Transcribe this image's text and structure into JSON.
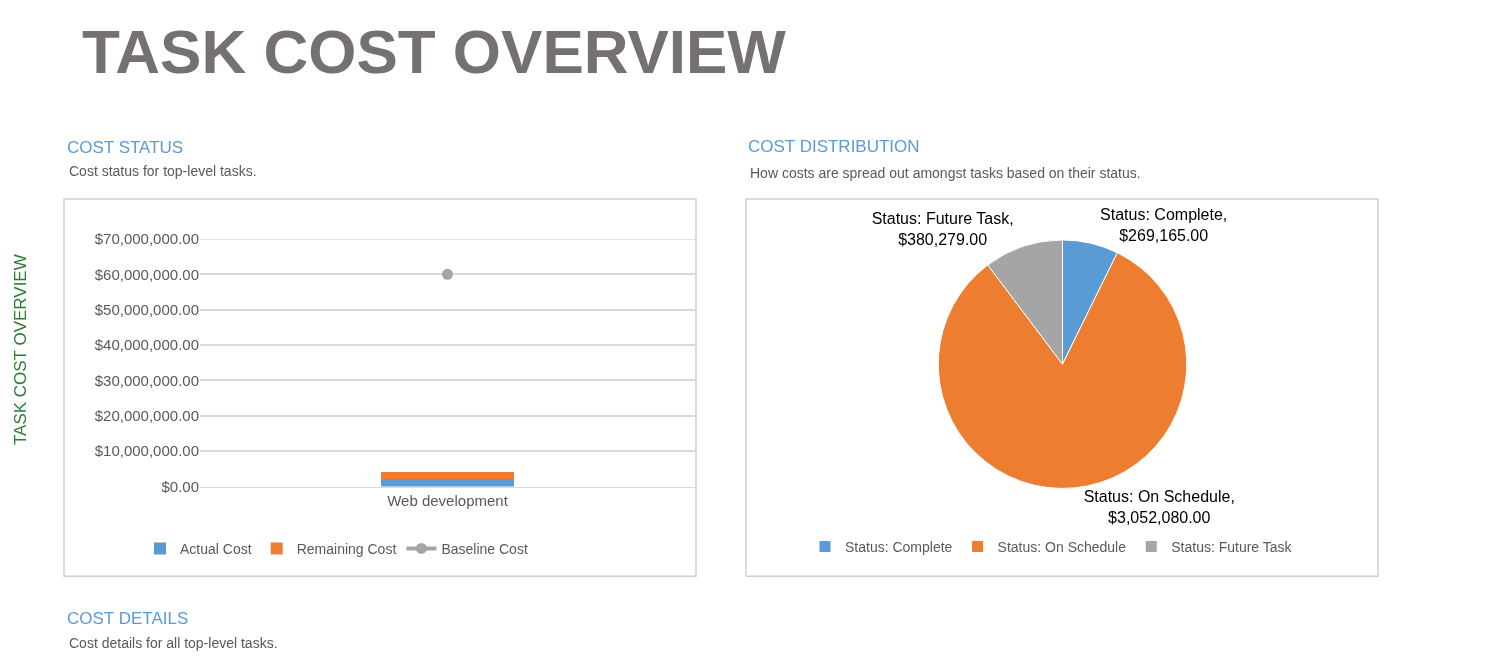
{
  "chart_data": [
    {
      "type": "bar",
      "title": "COST STATUS",
      "subtitle": "Cost status for top-level tasks.",
      "categories": [
        "Web development"
      ],
      "stacked": true,
      "series": [
        {
          "name": "Actual Cost",
          "color": "#5b9bd5",
          "values": [
            2000000
          ]
        },
        {
          "name": "Remaining Cost",
          "color": "#ed7d31",
          "values": [
            2000000
          ]
        },
        {
          "name": "Baseline Cost",
          "color": "#a5a5a5",
          "type": "line",
          "marker": "circle",
          "values": [
            60000000
          ]
        }
      ],
      "ylim": [
        0,
        70000000
      ],
      "yticks": [
        {
          "value": 0,
          "label": "$0.00"
        },
        {
          "value": 10000000,
          "label": "$10,000,000.00"
        },
        {
          "value": 20000000,
          "label": "$20,000,000.00"
        },
        {
          "value": 30000000,
          "label": "$30,000,000.00"
        },
        {
          "value": 40000000,
          "label": "$40,000,000.00"
        },
        {
          "value": 50000000,
          "label": "$50,000,000.00"
        },
        {
          "value": 60000000,
          "label": "$60,000,000.00"
        },
        {
          "value": 70000000,
          "label": "$70,000,000.00"
        }
      ],
      "grid": "y",
      "legend": "bottom"
    },
    {
      "type": "pie",
      "title": "COST DISTRIBUTION",
      "subtitle": "How costs are spread out amongst tasks based on their status.",
      "categories": [
        "Status: Complete",
        "Status: On Schedule",
        "Status: Future Task"
      ],
      "values": [
        269165,
        3052080,
        380279
      ],
      "value_labels": [
        "Status: Complete, $269,165.00",
        "Status: On Schedule, $3,052,080.00",
        "Status: Future Task, $380,279.00"
      ],
      "colors": [
        "#5b9bd5",
        "#ed7d31",
        "#a5a5a5"
      ],
      "legend": "bottom"
    },
    {
      "type": "other",
      "title": "TASK COST OVERVIEW",
      "annotations": [
        "TASK COST OVERVIEW",
        "COST DETAILS",
        "Cost details for all top-level tasks."
      ]
    }
  ]
}
